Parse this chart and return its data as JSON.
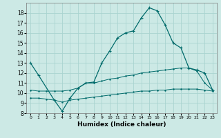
{
  "title": "",
  "xlabel": "Humidex (Indice chaleur)",
  "bg_color": "#cce9e5",
  "grid_color": "#aad4d0",
  "line_color": "#006b6b",
  "xlim": [
    -0.5,
    23.5
  ],
  "ylim": [
    8,
    19
  ],
  "yticks": [
    8,
    9,
    10,
    11,
    12,
    13,
    14,
    15,
    16,
    17,
    18
  ],
  "xticks": [
    0,
    1,
    2,
    3,
    4,
    5,
    6,
    7,
    8,
    9,
    10,
    11,
    12,
    13,
    14,
    15,
    16,
    17,
    18,
    19,
    20,
    21,
    22,
    23
  ],
  "line1_x": [
    0,
    1,
    3,
    4,
    5,
    6,
    7,
    8,
    9,
    10,
    11,
    12,
    13,
    14,
    15,
    16,
    17,
    18,
    19,
    20,
    21,
    22,
    23
  ],
  "line1_y": [
    13,
    11.8,
    9.3,
    8.2,
    9.5,
    10.5,
    11.0,
    11.1,
    13.0,
    14.2,
    15.5,
    16.0,
    16.2,
    17.5,
    18.5,
    18.2,
    16.8,
    15.0,
    14.5,
    12.5,
    12.3,
    12.0,
    10.3
  ],
  "line2_x": [
    0,
    1,
    2,
    3,
    4,
    5,
    6,
    7,
    8,
    9,
    10,
    11,
    12,
    13,
    14,
    15,
    16,
    17,
    18,
    19,
    20,
    21,
    22,
    23
  ],
  "line2_y": [
    10.3,
    10.2,
    10.2,
    10.2,
    10.2,
    10.3,
    10.5,
    11.0,
    11.0,
    11.2,
    11.4,
    11.5,
    11.7,
    11.8,
    12.0,
    12.1,
    12.2,
    12.3,
    12.4,
    12.5,
    12.5,
    12.2,
    11.0,
    10.3
  ],
  "line3_x": [
    0,
    1,
    2,
    3,
    4,
    5,
    6,
    7,
    8,
    9,
    10,
    11,
    12,
    13,
    14,
    15,
    16,
    17,
    18,
    19,
    20,
    21,
    22,
    23
  ],
  "line3_y": [
    9.5,
    9.5,
    9.4,
    9.3,
    9.1,
    9.3,
    9.4,
    9.5,
    9.6,
    9.7,
    9.8,
    9.9,
    10.0,
    10.1,
    10.2,
    10.2,
    10.3,
    10.3,
    10.4,
    10.4,
    10.4,
    10.4,
    10.3,
    10.2
  ]
}
